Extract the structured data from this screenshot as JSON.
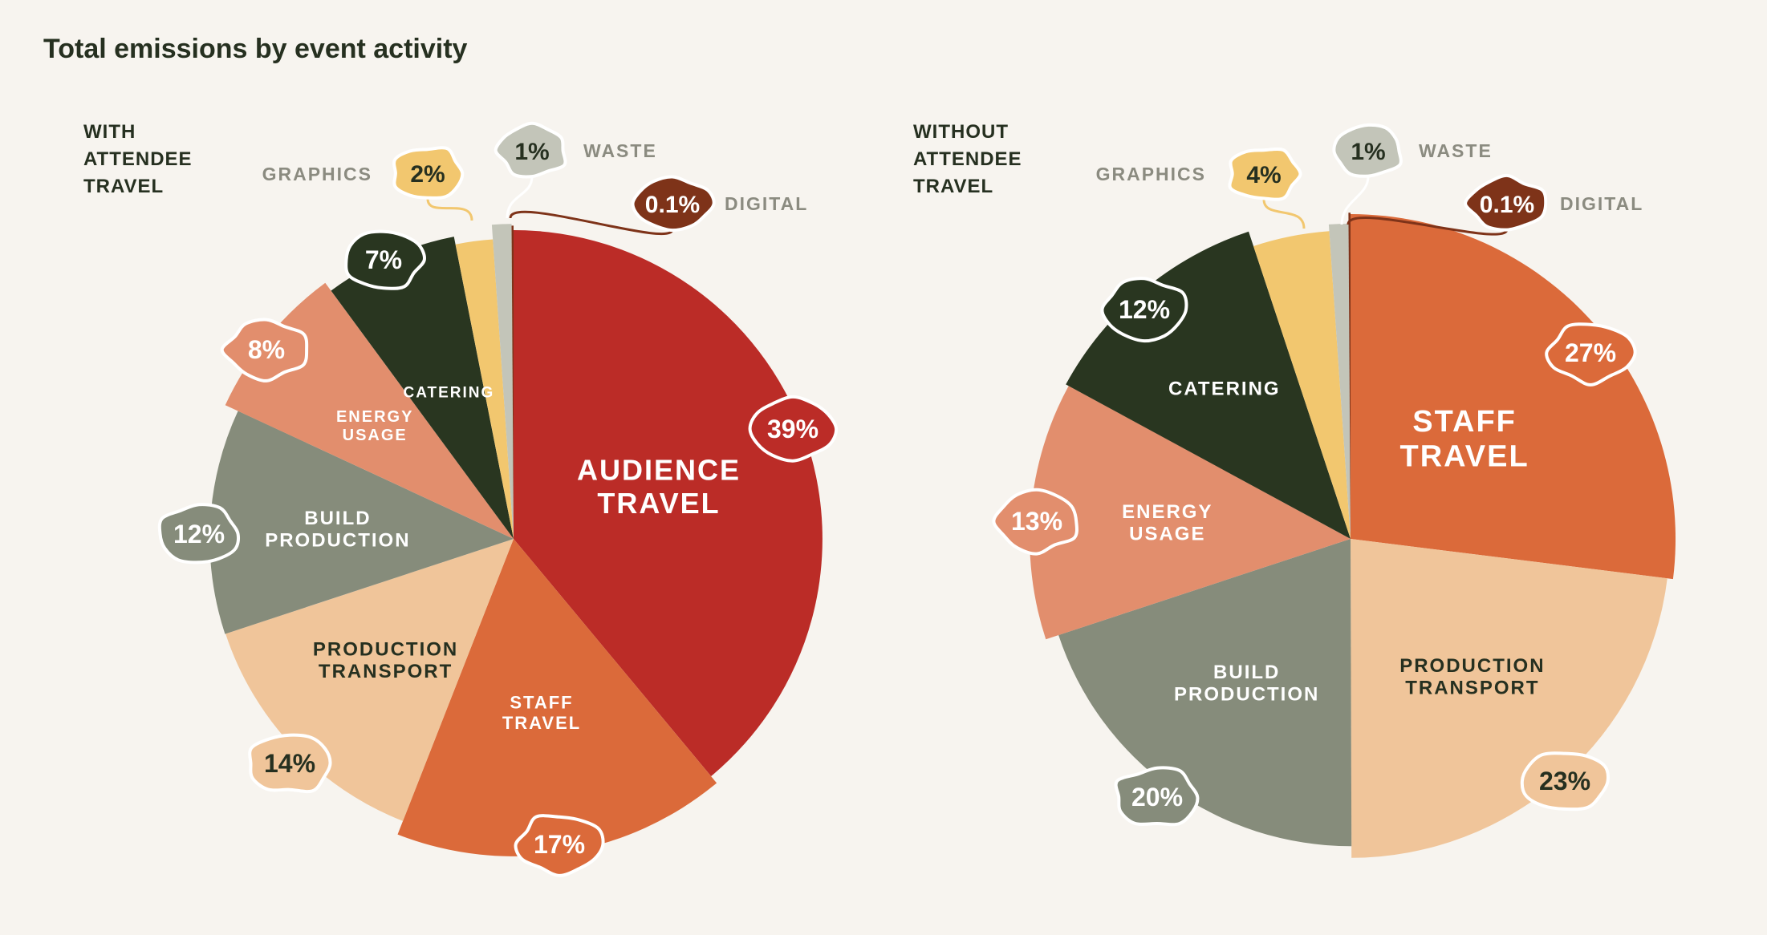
{
  "title": "Total emissions by event activity",
  "chart_data": [
    {
      "type": "pie",
      "condition": "WITH ATTENDEE TRAVEL",
      "condition_lines": [
        "WITH",
        "ATTENDEE",
        "TRAVEL"
      ],
      "slices": [
        {
          "label": "AUDIENCE TRAVEL",
          "label_lines": [
            "AUDIENCE",
            "TRAVEL"
          ],
          "value": 39,
          "value_label": "39%",
          "color": "#bb2c27",
          "text_color": "#ffffff",
          "badge_color": "#bb2c27",
          "badge_text": "#ffffff"
        },
        {
          "label": "STAFF TRAVEL",
          "label_lines": [
            "STAFF",
            "TRAVEL"
          ],
          "value": 17,
          "value_label": "17%",
          "color": "#db6a3a",
          "text_color": "#ffffff",
          "badge_color": "#db6a3a",
          "badge_text": "#ffffff"
        },
        {
          "label": "PRODUCTION TRANSPORT",
          "label_lines": [
            "PRODUCTION",
            "TRANSPORT"
          ],
          "value": 14,
          "value_label": "14%",
          "color": "#f0c59a",
          "text_color": "#263020",
          "badge_color": "#f0c59a",
          "badge_text": "#263020"
        },
        {
          "label": "BUILD PRODUCTION",
          "label_lines": [
            "BUILD",
            "PRODUCTION"
          ],
          "value": 12,
          "value_label": "12%",
          "color": "#868c7b",
          "text_color": "#ffffff",
          "badge_color": "#868c7b",
          "badge_text": "#ffffff"
        },
        {
          "label": "ENERGY USAGE",
          "label_lines": [
            "ENERGY",
            "USAGE"
          ],
          "value": 8,
          "value_label": "8%",
          "color": "#e28e6d",
          "text_color": "#ffffff",
          "badge_color": "#e28e6d",
          "badge_text": "#ffffff"
        },
        {
          "label": "CATERING",
          "label_lines": [
            "CATERING"
          ],
          "value": 7,
          "value_label": "7%",
          "color": "#293620",
          "text_color": "#ffffff",
          "badge_color": "#293620",
          "badge_text": "#ffffff"
        },
        {
          "label": "GRAPHICS",
          "label_lines": [
            "GRAPHICS"
          ],
          "value": 2,
          "value_label": "2%",
          "color": "#f2c76f",
          "text_color": "#263020",
          "badge_color": "#f2c76f",
          "badge_text": "#263020",
          "external": true
        },
        {
          "label": "WASTE",
          "label_lines": [
            "WASTE"
          ],
          "value": 1,
          "value_label": "1%",
          "color": "#c3c5b9",
          "text_color": "#263020",
          "badge_color": "#c3c5b9",
          "badge_text": "#263020",
          "external": true
        },
        {
          "label": "DIGITAL",
          "label_lines": [
            "DIGITAL"
          ],
          "value": 0.1,
          "value_label": "0.1%",
          "color": "#7e3319",
          "text_color": "#ffffff",
          "badge_color": "#7e3319",
          "badge_text": "#ffffff",
          "external": true
        }
      ]
    },
    {
      "type": "pie",
      "condition": "WITHOUT ATTENDEE TRAVEL",
      "condition_lines": [
        "WITHOUT",
        "ATTENDEE",
        "TRAVEL"
      ],
      "slices": [
        {
          "label": "STAFF TRAVEL",
          "label_lines": [
            "STAFF",
            "TRAVEL"
          ],
          "value": 27,
          "value_label": "27%",
          "color": "#db6a3a",
          "text_color": "#ffffff",
          "badge_color": "#db6a3a",
          "badge_text": "#ffffff"
        },
        {
          "label": "PRODUCTION TRANSPORT",
          "label_lines": [
            "PRODUCTION",
            "TRANSPORT"
          ],
          "value": 23,
          "value_label": "23%",
          "color": "#f0c59a",
          "text_color": "#263020",
          "badge_color": "#f0c59a",
          "badge_text": "#263020"
        },
        {
          "label": "BUILD PRODUCTION",
          "label_lines": [
            "BUILD",
            "PRODUCTION"
          ],
          "value": 20,
          "value_label": "20%",
          "color": "#868c7b",
          "text_color": "#ffffff",
          "badge_color": "#868c7b",
          "badge_text": "#ffffff"
        },
        {
          "label": "ENERGY USAGE",
          "label_lines": [
            "ENERGY",
            "USAGE"
          ],
          "value": 13,
          "value_label": "13%",
          "color": "#e28e6d",
          "text_color": "#ffffff",
          "badge_color": "#e28e6d",
          "badge_text": "#ffffff"
        },
        {
          "label": "CATERING",
          "label_lines": [
            "CATERING"
          ],
          "value": 12,
          "value_label": "12%",
          "color": "#293620",
          "text_color": "#ffffff",
          "badge_color": "#293620",
          "badge_text": "#ffffff"
        },
        {
          "label": "GRAPHICS",
          "label_lines": [
            "GRAPHICS"
          ],
          "value": 4,
          "value_label": "4%",
          "color": "#f2c76f",
          "text_color": "#263020",
          "badge_color": "#f2c76f",
          "badge_text": "#263020",
          "external": true
        },
        {
          "label": "WASTE",
          "label_lines": [
            "WASTE"
          ],
          "value": 1,
          "value_label": "1%",
          "color": "#c3c5b9",
          "text_color": "#263020",
          "badge_color": "#c3c5b9",
          "badge_text": "#263020",
          "external": true
        },
        {
          "label": "DIGITAL",
          "label_lines": [
            "DIGITAL"
          ],
          "value": 0.1,
          "value_label": "0.1%",
          "color": "#7e3319",
          "text_color": "#ffffff",
          "badge_color": "#7e3319",
          "badge_text": "#ffffff",
          "external": true
        }
      ]
    }
  ]
}
